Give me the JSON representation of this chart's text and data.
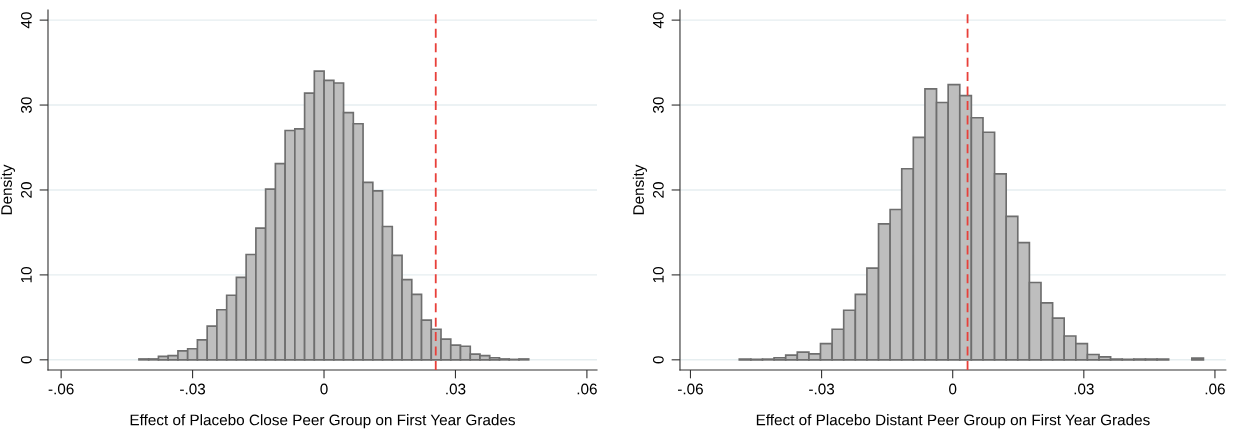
{
  "chart_data": [
    {
      "type": "histogram",
      "xlabel": "Effect of Placebo Close Peer Group on First Year Grades",
      "ylabel": "Density",
      "bins": [
        -0.04224,
        -0.04002,
        -0.03779,
        -0.03557,
        -0.03334,
        -0.03112,
        -0.0289,
        -0.02667,
        -0.02445,
        -0.02222,
        -0.02,
        -0.01778,
        -0.01555,
        -0.01333,
        -0.0111,
        -0.00888,
        -0.00666,
        -0.00443,
        -0.00221,
        2e-05,
        0.00224,
        0.00446,
        0.00669,
        0.00891,
        0.01114,
        0.01336,
        0.01558,
        0.01781,
        0.02003,
        0.02226,
        0.02448,
        0.0267,
        0.02893,
        0.03115,
        0.03338,
        0.0356,
        0.03782,
        0.04005,
        0.04227,
        0.0445,
        0.04672
      ],
      "values": [
        0.1,
        0.1,
        0.4,
        0.5,
        1.06,
        1.3,
        2.35,
        3.96,
        5.9,
        7.6,
        9.7,
        12.4,
        15.5,
        20.1,
        23.1,
        27.0,
        27.2,
        31.4,
        34.0,
        32.9,
        32.6,
        29.1,
        27.8,
        20.9,
        19.9,
        15.7,
        12.3,
        9.45,
        7.7,
        4.67,
        3.6,
        2.43,
        1.73,
        1.6,
        0.67,
        0.5,
        0.24,
        0.1,
        0.05,
        0.1
      ],
      "color": "#bebebe",
      "xlim": [
        -0.063,
        0.0623
      ],
      "xticks": [
        {
          "value": -0.06,
          "label": "-.06"
        },
        {
          "value": -0.03,
          "label": "-.03"
        },
        0,
        {
          "value": 0.03,
          "label": ".03"
        },
        {
          "value": 0.06,
          "label": ".06"
        }
      ],
      "ylim": [
        -1.2,
        41.2
      ],
      "yticks": [
        0,
        10,
        20,
        30,
        40
      ],
      "grid": "y",
      "ref_lines": [
        {
          "axis": "x",
          "value": 0.0255,
          "color": "#e8403a",
          "line_style": "dashed"
        }
      ]
    },
    {
      "type": "histogram",
      "xlabel": "Effect of Placebo Distant Peer Group on First Year Grades",
      "ylabel": "Density",
      "bins": [
        -0.04883,
        -0.04618,
        -0.04352,
        -0.04087,
        -0.03821,
        -0.03556,
        -0.0329,
        -0.03025,
        -0.02759,
        -0.02494,
        -0.02228,
        -0.01963,
        -0.01697,
        -0.01432,
        -0.01166,
        -0.00901,
        -0.00635,
        -0.0037,
        -0.00104,
        0.00162,
        0.00427,
        0.00693,
        0.00958,
        0.01224,
        0.01489,
        0.01755,
        0.0202,
        0.02286,
        0.02551,
        0.02817,
        0.03082,
        0.03348,
        0.03613,
        0.03879,
        0.04144,
        0.0441,
        0.04675,
        0.04941,
        0.05206,
        0.05472,
        0.05737
      ],
      "values": [
        0.08,
        0.05,
        0.08,
        0.24,
        0.55,
        0.9,
        0.7,
        1.9,
        3.6,
        5.84,
        7.7,
        10.8,
        16.0,
        17.7,
        22.5,
        26.2,
        31.9,
        30.3,
        32.4,
        31.1,
        28.5,
        26.8,
        21.9,
        16.9,
        13.8,
        9.1,
        6.7,
        4.9,
        2.8,
        1.9,
        0.63,
        0.35,
        0.1,
        0.05,
        0.1,
        0.1,
        0.1,
        null,
        null,
        0.2
      ],
      "color": "#bebebe",
      "xlim": [
        -0.0624,
        0.0625
      ],
      "xticks": [
        {
          "value": -0.06,
          "label": "-.06"
        },
        {
          "value": -0.03,
          "label": "-.03"
        },
        0,
        {
          "value": 0.03,
          "label": ".03"
        },
        {
          "value": 0.06,
          "label": ".06"
        }
      ],
      "ylim": [
        -1.2,
        41.2
      ],
      "yticks": [
        0,
        10,
        20,
        30,
        40
      ],
      "grid": "y",
      "ref_lines": [
        {
          "axis": "x",
          "value": 0.0034,
          "color": "#e8403a",
          "line_style": "dashed"
        }
      ]
    }
  ]
}
